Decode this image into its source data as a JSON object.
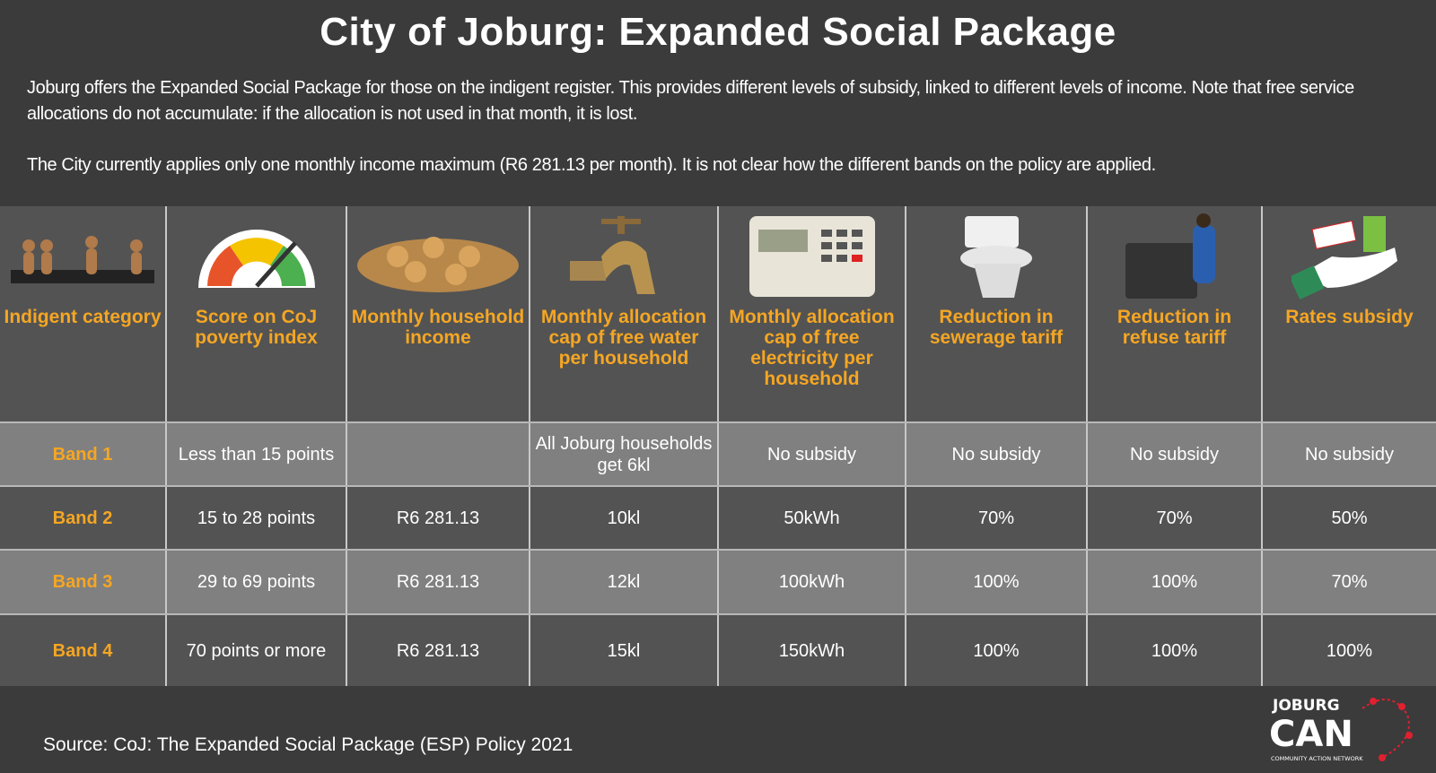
{
  "title": "City of Joburg: Expanded Social Package",
  "intro": [
    "Joburg offers the Expanded Social Package for those on the indigent register. This provides different levels of subsidy, linked to different levels of income. Note that free service allocations do not accumulate: if the allocation is not used in that month, it is lost.",
    "The City currently applies only one monthly income maximum (R6 281.13 per month). It is not clear how the different bands on the policy are applied."
  ],
  "columns": [
    {
      "label": "Indigent category",
      "icon": "people-figures-icon"
    },
    {
      "label": "Score on CoJ poverty index",
      "icon": "gauge-icon"
    },
    {
      "label": "Monthly household income",
      "icon": "coins-icon"
    },
    {
      "label": "Monthly allocation cap of free water per household",
      "icon": "water-tap-icon"
    },
    {
      "label": "Monthly allocation cap of free electricity per household",
      "icon": "prepaid-meter-icon"
    },
    {
      "label": "Reduction in sewerage tariff",
      "icon": "toilet-icon"
    },
    {
      "label": "Reduction in refuse tariff",
      "icon": "refuse-bin-icon"
    },
    {
      "label": "Rates subsidy",
      "icon": "cash-back-icon"
    }
  ],
  "rows": [
    [
      "Band 1",
      "Less than 15 points",
      "",
      "All Joburg households get 6kl",
      "No subsidy",
      "No subsidy",
      "No subsidy",
      "No subsidy"
    ],
    [
      "Band 2",
      "15 to 28 points",
      "R6 281.13",
      "10kl",
      "50kWh",
      "70%",
      "70%",
      "50%"
    ],
    [
      "Band 3",
      "29 to 69 points",
      "R6 281.13",
      "12kl",
      "100kWh",
      "100%",
      "100%",
      "70%"
    ],
    [
      "Band 4",
      "70 points or more",
      "R6 281.13",
      "15kl",
      "150kWh",
      "100%",
      "100%",
      "100%"
    ]
  ],
  "source": "Source: CoJ: The Expanded Social Package (ESP) Policy 2021",
  "logo": {
    "line1": "JOBURG",
    "line2": "CAN",
    "line3": "COMMUNITY ACTION NETWORK"
  },
  "colors": {
    "accent": "#f5a623",
    "light_row": "#808080",
    "dark_row": "#535353",
    "logo_red": "#e02030"
  }
}
